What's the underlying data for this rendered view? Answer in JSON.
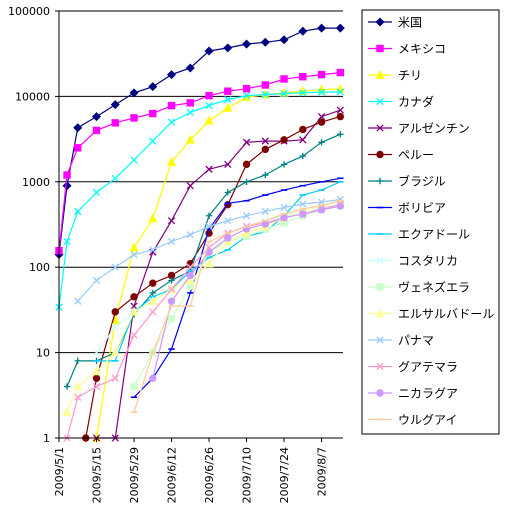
{
  "chart_data": {
    "type": "line",
    "y_scale": "log",
    "ylim": [
      1,
      100000
    ],
    "y_ticks": [
      {
        "value": 1,
        "label": "1"
      },
      {
        "value": 10,
        "label": "10"
      },
      {
        "value": 100,
        "label": "100"
      },
      {
        "value": 1000,
        "label": "1000"
      },
      {
        "value": 10000,
        "label": "10000"
      },
      {
        "value": 100000,
        "label": "100000"
      }
    ],
    "xlim": [
      "2009-05-01",
      "2009-08-15"
    ],
    "x_ticks": [
      "2009/5/1",
      "2009/5/15",
      "2009/5/29",
      "2009/6/12",
      "2009/6/26",
      "2009/7/10",
      "2009/7/24",
      "2009/8/7"
    ],
    "grid": "horizontal major lines",
    "legend_position": "right",
    "series": [
      {
        "name": "米国",
        "color": "#000080",
        "marker": "diamond",
        "x": [
          "2009-05-01",
          "2009-05-04",
          "2009-05-08",
          "2009-05-15",
          "2009-05-22",
          "2009-05-29",
          "2009-06-05",
          "2009-06-12",
          "2009-06-19",
          "2009-06-26",
          "2009-07-03",
          "2009-07-10",
          "2009-07-17",
          "2009-07-24",
          "2009-07-31",
          "2009-08-07",
          "2009-08-14"
        ],
        "y": [
          141,
          900,
          4300,
          5800,
          8000,
          11000,
          13000,
          18000,
          21500,
          34000,
          37000,
          41000,
          43000,
          46000,
          58000,
          63000,
          63000
        ]
      },
      {
        "name": "メキシコ",
        "color": "#FF00FF",
        "marker": "square",
        "x": [
          "2009-05-01",
          "2009-05-04",
          "2009-05-08",
          "2009-05-15",
          "2009-05-22",
          "2009-05-29",
          "2009-06-05",
          "2009-06-12",
          "2009-06-19",
          "2009-06-26",
          "2009-07-03",
          "2009-07-10",
          "2009-07-17",
          "2009-07-24",
          "2009-07-31",
          "2009-08-07",
          "2009-08-14"
        ],
        "y": [
          156,
          1200,
          2500,
          4000,
          4900,
          5600,
          6300,
          7800,
          8400,
          10200,
          11500,
          12300,
          13600,
          16000,
          17000,
          18000,
          19000
        ]
      },
      {
        "name": "チリ",
        "color": "#FFFF00",
        "marker": "triangle",
        "x": [
          "2009-05-15",
          "2009-05-22",
          "2009-05-29",
          "2009-06-05",
          "2009-06-12",
          "2009-06-19",
          "2009-06-26",
          "2009-07-03",
          "2009-07-10",
          "2009-07-17",
          "2009-07-24",
          "2009-07-31",
          "2009-08-07",
          "2009-08-14"
        ],
        "y": [
          1,
          24,
          170,
          370,
          1700,
          3100,
          5200,
          7300,
          9800,
          10500,
          11000,
          11500,
          12000,
          12200
        ]
      },
      {
        "name": "カナダ",
        "color": "#00FFFF",
        "marker": "x",
        "x": [
          "2009-05-01",
          "2009-05-04",
          "2009-05-08",
          "2009-05-15",
          "2009-05-22",
          "2009-05-29",
          "2009-06-05",
          "2009-06-12",
          "2009-06-19",
          "2009-06-26",
          "2009-07-03",
          "2009-07-10",
          "2009-07-17",
          "2009-07-24",
          "2009-07-31",
          "2009-08-07",
          "2009-08-14"
        ],
        "y": [
          34,
          200,
          450,
          750,
          1100,
          1800,
          3000,
          5000,
          6500,
          7800,
          9200,
          10200,
          10500,
          10800,
          11000,
          11200,
          11300
        ]
      },
      {
        "name": "アルゼンチン",
        "color": "#800080",
        "marker": "x",
        "x": [
          "2009-05-15",
          "2009-05-22",
          "2009-05-29",
          "2009-06-05",
          "2009-06-12",
          "2009-06-19",
          "2009-06-26",
          "2009-07-03",
          "2009-07-10",
          "2009-07-17",
          "2009-07-24",
          "2009-07-31",
          "2009-08-07",
          "2009-08-14"
        ],
        "y": [
          1,
          1,
          35,
          150,
          350,
          900,
          1400,
          1600,
          2900,
          3000,
          3000,
          3100,
          5800,
          6900
        ]
      },
      {
        "name": "ペルー",
        "color": "#800000",
        "marker": "circle",
        "x": [
          "2009-05-11",
          "2009-05-15",
          "2009-05-22",
          "2009-05-29",
          "2009-06-05",
          "2009-06-12",
          "2009-06-19",
          "2009-06-26",
          "2009-07-03",
          "2009-07-10",
          "2009-07-17",
          "2009-07-24",
          "2009-07-31",
          "2009-08-07",
          "2009-08-14"
        ],
        "y": [
          1,
          5,
          30,
          45,
          65,
          80,
          110,
          250,
          540,
          1600,
          2400,
          3100,
          4100,
          5000,
          5800
        ]
      },
      {
        "name": "ブラジル",
        "color": "#008080",
        "marker": "plus",
        "x": [
          "2009-05-04",
          "2009-05-08",
          "2009-05-15",
          "2009-05-22",
          "2009-05-29",
          "2009-06-05",
          "2009-06-12",
          "2009-06-19",
          "2009-06-26",
          "2009-07-03",
          "2009-07-10",
          "2009-07-17",
          "2009-07-24",
          "2009-07-31",
          "2009-08-07",
          "2009-08-14"
        ],
        "y": [
          4,
          8,
          8,
          10,
          28,
          50,
          70,
          90,
          400,
          750,
          1000,
          1200,
          1600,
          2000,
          2900,
          3600
        ]
      },
      {
        "name": "ボリビア",
        "color": "#0000FF",
        "marker": "dash",
        "x": [
          "2009-05-29",
          "2009-06-05",
          "2009-06-12",
          "2009-06-19",
          "2009-06-26",
          "2009-07-03",
          "2009-07-10",
          "2009-07-17",
          "2009-07-24",
          "2009-07-31",
          "2009-08-07",
          "2009-08-14"
        ],
        "y": [
          3,
          5,
          11,
          50,
          280,
          560,
          600,
          700,
          800,
          900,
          1000,
          1100
        ]
      },
      {
        "name": "エクアドール",
        "color": "#00CCFF",
        "marker": "dash",
        "x": [
          "2009-05-15",
          "2009-05-22",
          "2009-05-29",
          "2009-06-05",
          "2009-06-12",
          "2009-06-19",
          "2009-06-26",
          "2009-07-03",
          "2009-07-10",
          "2009-07-17",
          "2009-07-24",
          "2009-07-31",
          "2009-08-07",
          "2009-08-14"
        ],
        "y": [
          8,
          8,
          30,
          45,
          55,
          90,
          130,
          160,
          230,
          260,
          400,
          700,
          800,
          1000
        ]
      },
      {
        "name": "コスタリカ",
        "color": "#CCFFFF",
        "marker": "x",
        "x": [
          "2009-05-15",
          "2009-05-22",
          "2009-05-29",
          "2009-06-05",
          "2009-06-12",
          "2009-06-19",
          "2009-06-26",
          "2009-07-03",
          "2009-07-10",
          "2009-07-17",
          "2009-07-24",
          "2009-07-31",
          "2009-08-07",
          "2009-08-14"
        ],
        "y": [
          10,
          20,
          30,
          40,
          55,
          100,
          170,
          250,
          300,
          350,
          400,
          450,
          500,
          520
        ]
      },
      {
        "name": "ヴェネズエラ",
        "color": "#CCFFCC",
        "marker": "square",
        "x": [
          "2009-05-29",
          "2009-06-05",
          "2009-06-12",
          "2009-06-19",
          "2009-06-26",
          "2009-07-03",
          "2009-07-10",
          "2009-07-17",
          "2009-07-24",
          "2009-07-31",
          "2009-08-07",
          "2009-08-14"
        ],
        "y": [
          4,
          10,
          25,
          60,
          150,
          200,
          230,
          280,
          330,
          400,
          470,
          560
        ]
      },
      {
        "name": "エルサルバドール",
        "color": "#FFFF99",
        "marker": "triangle",
        "x": [
          "2009-05-04",
          "2009-05-08",
          "2009-05-15",
          "2009-05-22",
          "2009-05-29",
          "2009-06-05",
          "2009-06-12",
          "2009-06-19",
          "2009-06-26",
          "2009-07-03",
          "2009-07-10",
          "2009-07-17",
          "2009-07-24",
          "2009-07-31",
          "2009-08-07",
          "2009-08-14"
        ],
        "y": [
          2,
          4,
          6,
          10,
          30,
          40,
          55,
          70,
          110,
          200,
          250,
          300,
          380,
          450,
          520,
          600
        ]
      },
      {
        "name": "パナマ",
        "color": "#99CCFF",
        "marker": "x",
        "x": [
          "2009-05-08",
          "2009-05-15",
          "2009-05-22",
          "2009-05-29",
          "2009-06-05",
          "2009-06-12",
          "2009-06-19",
          "2009-06-26",
          "2009-07-03",
          "2009-07-10",
          "2009-07-17",
          "2009-07-24",
          "2009-07-31",
          "2009-08-07",
          "2009-08-14"
        ],
        "y": [
          40,
          70,
          100,
          140,
          160,
          200,
          240,
          300,
          350,
          400,
          450,
          500,
          550,
          580,
          620
        ]
      },
      {
        "name": "グアテマラ",
        "color": "#FF99CC",
        "marker": "x",
        "x": [
          "2009-05-04",
          "2009-05-08",
          "2009-05-15",
          "2009-05-22",
          "2009-05-29",
          "2009-06-05",
          "2009-06-12",
          "2009-06-19",
          "2009-06-26",
          "2009-07-03",
          "2009-07-10",
          "2009-07-17",
          "2009-07-24",
          "2009-07-31",
          "2009-08-07",
          "2009-08-14"
        ],
        "y": [
          1,
          3,
          4,
          5,
          16,
          30,
          55,
          100,
          170,
          250,
          300,
          330,
          380,
          420,
          480,
          540
        ]
      },
      {
        "name": "ニカラグア",
        "color": "#CC99FF",
        "marker": "circle",
        "x": [
          "2009-06-05",
          "2009-06-12",
          "2009-06-19",
          "2009-06-26",
          "2009-07-03",
          "2009-07-10",
          "2009-07-17",
          "2009-07-24",
          "2009-07-31",
          "2009-08-07",
          "2009-08-14"
        ],
        "y": [
          5,
          40,
          80,
          150,
          220,
          280,
          320,
          380,
          420,
          470,
          520
        ]
      },
      {
        "name": "ウルグアイ",
        "color": "#FFCC99",
        "marker": "dash",
        "x": [
          "2009-05-29",
          "2009-06-05",
          "2009-06-12",
          "2009-06-19",
          "2009-06-26",
          "2009-07-03",
          "2009-07-10",
          "2009-07-17",
          "2009-07-24",
          "2009-07-31",
          "2009-08-07",
          "2009-08-14"
        ],
        "y": [
          2,
          10,
          35,
          35,
          200,
          250,
          300,
          350,
          420,
          480,
          530,
          600
        ]
      }
    ]
  }
}
